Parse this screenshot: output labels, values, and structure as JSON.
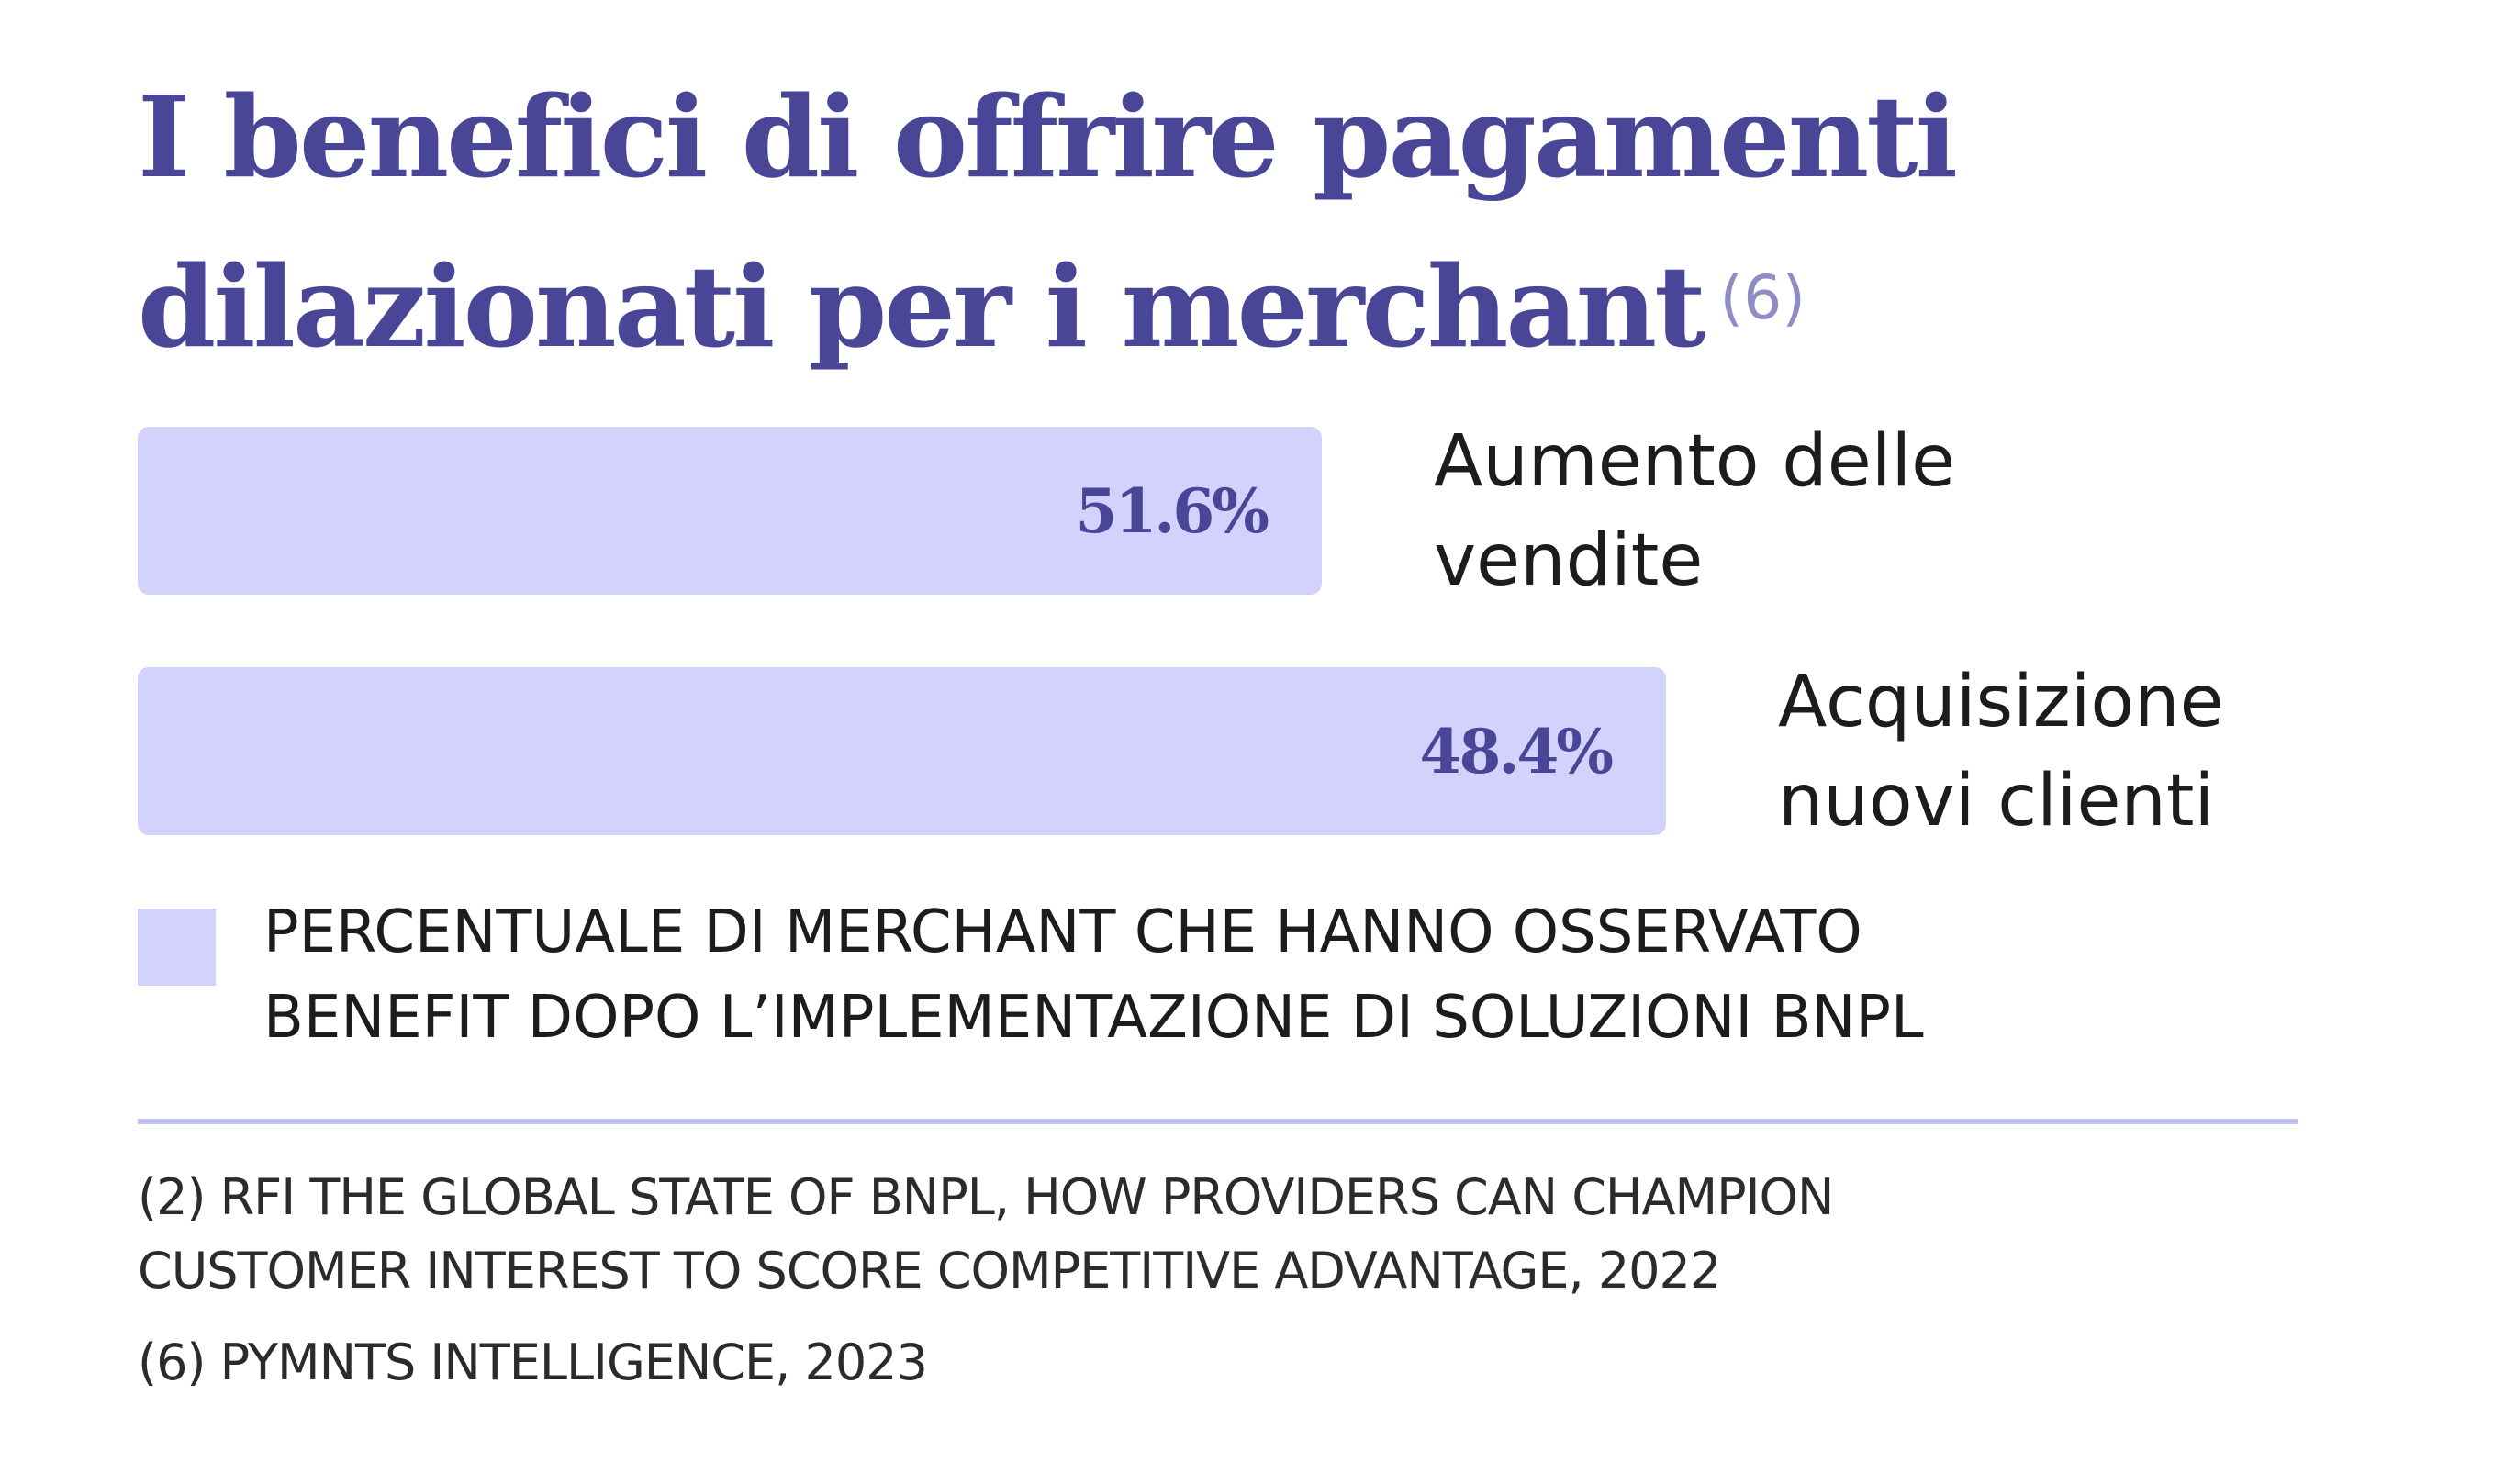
{
  "chart_data": {
    "type": "bar",
    "title": "I benefici di offrire pagamenti dilazionati per i merchant",
    "title_reference": "(6)",
    "orientation": "horizontal",
    "categories": [
      "Aumento delle vendite",
      "Acquisizione nuovi clienti"
    ],
    "category_lines": [
      [
        "Aumento delle",
        "vendite"
      ],
      [
        "Acquisizione",
        "nuovi clienti"
      ]
    ],
    "series": [
      {
        "name": "PERCENTUALE DI MERCHANT CHE HANNO OSSERVATO BENEFIT DOPO L’IMPLEMENTAZIONE DI SOLUZIONI BNPL",
        "values": [
          51.6,
          48.4
        ],
        "labels": [
          "51.6%",
          "48.4%"
        ]
      }
    ],
    "legend_lines": [
      "PERCENTUALE DI MERCHANT CHE HANNO OSSERVATO",
      "BENEFIT DOPO L’IMPLEMENTAZIONE DI SOLUZIONI BNPL"
    ],
    "legend_position": "bottom-left",
    "grid": false,
    "colors": {
      "bar": "#d3d2fc",
      "title": "#4a4697",
      "value_label": "#4a4697",
      "divider": "#c4c3f6"
    }
  },
  "title_lines": [
    "I benefici di offrire pagamenti",
    "dilazionati per i merchant"
  ],
  "footnotes": [
    [
      "(2) RFI THE GLOBAL STATE OF BNPL, HOW PROVIDERS CAN CHAMPION",
      "CUSTOMER INTEREST TO SCORE COMPETITIVE ADVANTAGE, 2022"
    ],
    [
      "(6) PYMNTS INTELLIGENCE, 2023"
    ]
  ]
}
